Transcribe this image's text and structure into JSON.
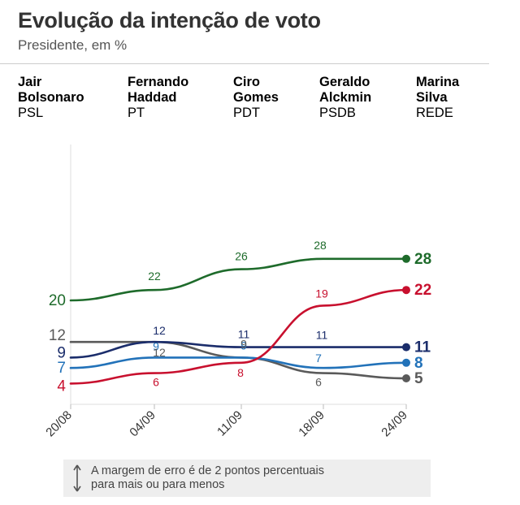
{
  "title": "Evolução da intenção de voto",
  "subtitle": "Presidente, em %",
  "legend": [
    {
      "name": "Jair\nBolsonaro",
      "party": "PSL",
      "color": "#1e6b2b"
    },
    {
      "name": "Fernando\nHaddad",
      "party": "PT",
      "color": "#c8102e"
    },
    {
      "name": "Ciro\nGomes",
      "party": "PDT",
      "color": "#1b2d6b"
    },
    {
      "name": "Geraldo\nAlckmin",
      "party": "PSDB",
      "color": "#2272b9"
    },
    {
      "name": "Marina\nSilva",
      "party": "REDE",
      "color": "#5a5a5a"
    }
  ],
  "footnote": "A margem de erro é de 2 pontos percentuais\npara mais ou para menos",
  "chart_data": {
    "type": "line",
    "title": "Evolução da intenção de voto",
    "subtitle": "Presidente, em %",
    "xlabel": "",
    "ylabel": "",
    "categories": [
      "20/08",
      "04/09",
      "11/09",
      "18/09",
      "24/09"
    ],
    "ylim": [
      0,
      30
    ],
    "grid": false,
    "series": [
      {
        "name": "Jair Bolsonaro",
        "party": "PSL",
        "color": "#1e6b2b",
        "values": [
          20,
          22,
          26,
          28,
          28
        ],
        "labels": [
          "20",
          "22",
          "26",
          "28",
          "28"
        ]
      },
      {
        "name": "Fernando Haddad",
        "party": "PT",
        "color": "#c8102e",
        "values": [
          4,
          6,
          8,
          19,
          22
        ],
        "labels": [
          "4",
          "6",
          "8",
          "19",
          "22"
        ]
      },
      {
        "name": "Ciro Gomes",
        "party": "PDT",
        "color": "#1b2d6b",
        "values": [
          9,
          12,
          11,
          11,
          11
        ],
        "labels": [
          "9",
          "12",
          "11",
          "11",
          "11"
        ]
      },
      {
        "name": "Geraldo Alckmin",
        "party": "PSDB",
        "color": "#2272b9",
        "values": [
          7,
          9,
          9,
          7,
          8
        ],
        "labels": [
          "7",
          "9",
          "9",
          "7",
          "8"
        ]
      },
      {
        "name": "Marina Silva",
        "party": "REDE",
        "color": "#5a5a5a",
        "values": [
          12,
          12,
          9,
          6,
          5
        ],
        "labels": [
          "12",
          "12",
          "9",
          "6",
          "5"
        ]
      }
    ]
  }
}
